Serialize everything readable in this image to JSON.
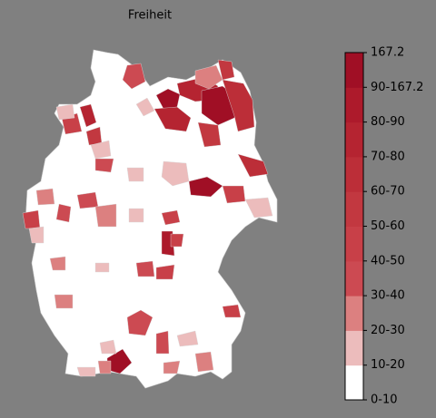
{
  "title": "Freiheit",
  "colorbar": {
    "labels": [
      "0-10",
      "10-20",
      "20-30",
      "30-40",
      "40-50",
      "50-60",
      "60-70",
      "70-80",
      "80-90",
      "90-167.2",
      "167.2"
    ],
    "colors": [
      "#ffffff",
      "#ecbcbc",
      "#dc8080",
      "#cc4a52",
      "#c84048",
      "#c23840",
      "#bc2e38",
      "#b52431",
      "#ad1a2b",
      "#a00f25"
    ]
  }
}
